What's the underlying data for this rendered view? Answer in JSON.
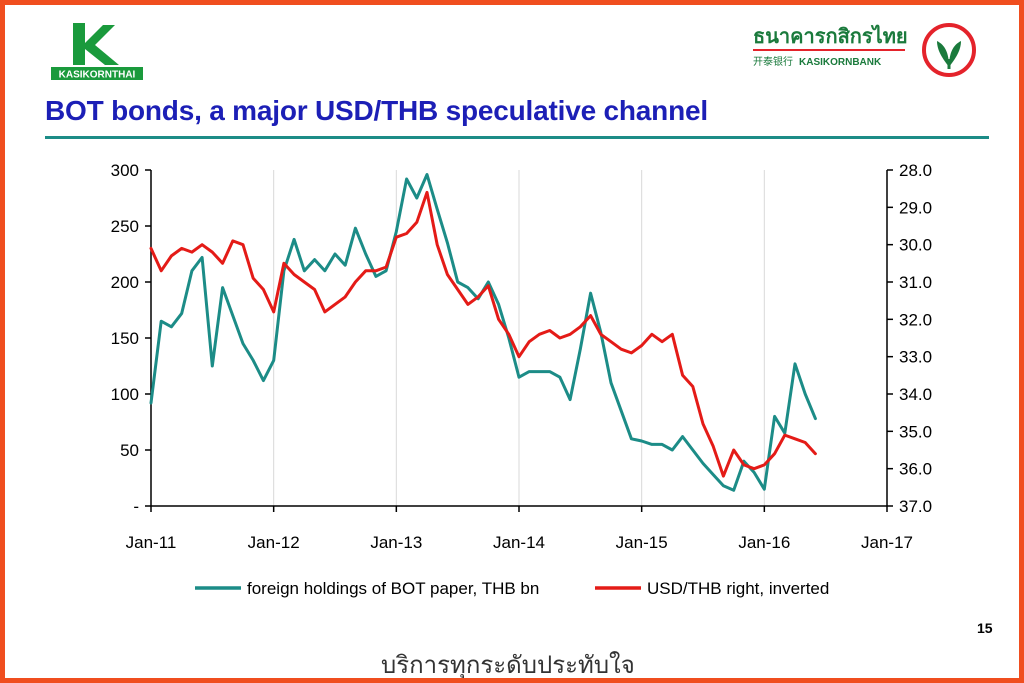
{
  "header": {
    "left_logo": {
      "text": "KASIKORNTHAI",
      "color": "#1a9a3c"
    },
    "right_logo": {
      "thai_text": "ธนาคารกสิกรไทย",
      "chinese_text": "开泰银行",
      "english_text": "KASIKORNBANK",
      "color": "#1a7a3c",
      "accent": "#e4232b"
    }
  },
  "title": "BOT bonds, a major USD/THB speculative channel",
  "page_number": "15",
  "tagline": "บริการทุกระดับประทับใจ",
  "colors": {
    "border": "#f04e1f",
    "title": "#1c1fb6",
    "rule": "#1c8c87",
    "teal_series": "#1c8c87",
    "red_series": "#e41b17"
  },
  "chart_data": {
    "type": "line",
    "title": "",
    "x_axis": {
      "type": "date",
      "range": [
        "2011-01",
        "2017-01"
      ],
      "ticks": [
        "Jan-11",
        "Jan-12",
        "Jan-13",
        "Jan-14",
        "Jan-15",
        "Jan-16",
        "Jan-17"
      ]
    },
    "y_left": {
      "range": [
        0,
        300
      ],
      "ticks": [
        "-",
        "50",
        "100",
        "150",
        "200",
        "250",
        "300"
      ]
    },
    "y_right": {
      "range": [
        28.0,
        37.0
      ],
      "inverted": true,
      "ticks": [
        "28.0",
        "29.0",
        "30.0",
        "31.0",
        "32.0",
        "33.0",
        "34.0",
        "35.0",
        "36.0",
        "37.0"
      ]
    },
    "grid": "vertical only",
    "legend_position": "bottom",
    "series": [
      {
        "name": "foreign holdings of BOT paper, THB bn",
        "axis": "left",
        "color": "#1c8c87",
        "points": [
          [
            "2011-01",
            92
          ],
          [
            "2011-02",
            165
          ],
          [
            "2011-03",
            160
          ],
          [
            "2011-04",
            172
          ],
          [
            "2011-05",
            210
          ],
          [
            "2011-06",
            222
          ],
          [
            "2011-07",
            125
          ],
          [
            "2011-08",
            195
          ],
          [
            "2011-09",
            170
          ],
          [
            "2011-10",
            145
          ],
          [
            "2011-11",
            130
          ],
          [
            "2011-12",
            112
          ],
          [
            "2012-01",
            130
          ],
          [
            "2012-02",
            210
          ],
          [
            "2012-03",
            238
          ],
          [
            "2012-04",
            210
          ],
          [
            "2012-05",
            220
          ],
          [
            "2012-06",
            210
          ],
          [
            "2012-07",
            225
          ],
          [
            "2012-08",
            215
          ],
          [
            "2012-09",
            248
          ],
          [
            "2012-10",
            225
          ],
          [
            "2012-11",
            205
          ],
          [
            "2012-12",
            210
          ],
          [
            "2013-01",
            245
          ],
          [
            "2013-02",
            292
          ],
          [
            "2013-03",
            275
          ],
          [
            "2013-04",
            296
          ],
          [
            "2013-05",
            265
          ],
          [
            "2013-06",
            235
          ],
          [
            "2013-07",
            200
          ],
          [
            "2013-08",
            195
          ],
          [
            "2013-09",
            185
          ],
          [
            "2013-10",
            200
          ],
          [
            "2013-11",
            180
          ],
          [
            "2013-12",
            150
          ],
          [
            "2014-01",
            115
          ],
          [
            "2014-02",
            120
          ],
          [
            "2014-03",
            120
          ],
          [
            "2014-04",
            120
          ],
          [
            "2014-05",
            115
          ],
          [
            "2014-06",
            95
          ],
          [
            "2014-07",
            140
          ],
          [
            "2014-08",
            190
          ],
          [
            "2014-09",
            155
          ],
          [
            "2014-10",
            110
          ],
          [
            "2014-11",
            85
          ],
          [
            "2014-12",
            60
          ],
          [
            "2015-01",
            58
          ],
          [
            "2015-02",
            55
          ],
          [
            "2015-03",
            55
          ],
          [
            "2015-04",
            50
          ],
          [
            "2015-05",
            62
          ],
          [
            "2015-06",
            50
          ],
          [
            "2015-07",
            38
          ],
          [
            "2015-08",
            28
          ],
          [
            "2015-09",
            18
          ],
          [
            "2015-10",
            14
          ],
          [
            "2015-11",
            40
          ],
          [
            "2015-12",
            30
          ],
          [
            "2016-01",
            15
          ],
          [
            "2016-02",
            80
          ],
          [
            "2016-03",
            65
          ],
          [
            "2016-04",
            127
          ],
          [
            "2016-05",
            100
          ],
          [
            "2016-06",
            78
          ]
        ]
      },
      {
        "name": "USD/THB right, inverted",
        "axis": "right",
        "color": "#e41b17",
        "points": [
          [
            "2011-01",
            30.1
          ],
          [
            "2011-02",
            30.7
          ],
          [
            "2011-03",
            30.3
          ],
          [
            "2011-04",
            30.1
          ],
          [
            "2011-05",
            30.2
          ],
          [
            "2011-06",
            30.0
          ],
          [
            "2011-07",
            30.2
          ],
          [
            "2011-08",
            30.5
          ],
          [
            "2011-09",
            29.9
          ],
          [
            "2011-10",
            30.0
          ],
          [
            "2011-11",
            30.9
          ],
          [
            "2011-12",
            31.2
          ],
          [
            "2012-01",
            31.8
          ],
          [
            "2012-02",
            30.5
          ],
          [
            "2012-03",
            30.8
          ],
          [
            "2012-04",
            31.0
          ],
          [
            "2012-05",
            31.2
          ],
          [
            "2012-06",
            31.8
          ],
          [
            "2012-07",
            31.6
          ],
          [
            "2012-08",
            31.4
          ],
          [
            "2012-09",
            31.0
          ],
          [
            "2012-10",
            30.7
          ],
          [
            "2012-11",
            30.7
          ],
          [
            "2012-12",
            30.6
          ],
          [
            "2013-01",
            29.8
          ],
          [
            "2013-02",
            29.7
          ],
          [
            "2013-03",
            29.4
          ],
          [
            "2013-04",
            28.6
          ],
          [
            "2013-05",
            30.0
          ],
          [
            "2013-06",
            30.8
          ],
          [
            "2013-07",
            31.2
          ],
          [
            "2013-08",
            31.6
          ],
          [
            "2013-09",
            31.4
          ],
          [
            "2013-10",
            31.1
          ],
          [
            "2013-11",
            32.0
          ],
          [
            "2013-12",
            32.4
          ],
          [
            "2014-01",
            33.0
          ],
          [
            "2014-02",
            32.6
          ],
          [
            "2014-03",
            32.4
          ],
          [
            "2014-04",
            32.3
          ],
          [
            "2014-05",
            32.5
          ],
          [
            "2014-06",
            32.4
          ],
          [
            "2014-07",
            32.2
          ],
          [
            "2014-08",
            31.9
          ],
          [
            "2014-09",
            32.4
          ],
          [
            "2014-10",
            32.6
          ],
          [
            "2014-11",
            32.8
          ],
          [
            "2014-12",
            32.9
          ],
          [
            "2015-01",
            32.7
          ],
          [
            "2015-02",
            32.4
          ],
          [
            "2015-03",
            32.6
          ],
          [
            "2015-04",
            32.4
          ],
          [
            "2015-05",
            33.5
          ],
          [
            "2015-06",
            33.8
          ],
          [
            "2015-07",
            34.8
          ],
          [
            "2015-08",
            35.4
          ],
          [
            "2015-09",
            36.2
          ],
          [
            "2015-10",
            35.5
          ],
          [
            "2015-11",
            35.9
          ],
          [
            "2015-12",
            36.0
          ],
          [
            "2016-01",
            35.9
          ],
          [
            "2016-02",
            35.6
          ],
          [
            "2016-03",
            35.1
          ],
          [
            "2016-04",
            35.2
          ],
          [
            "2016-05",
            35.3
          ],
          [
            "2016-06",
            35.6
          ]
        ]
      }
    ]
  }
}
